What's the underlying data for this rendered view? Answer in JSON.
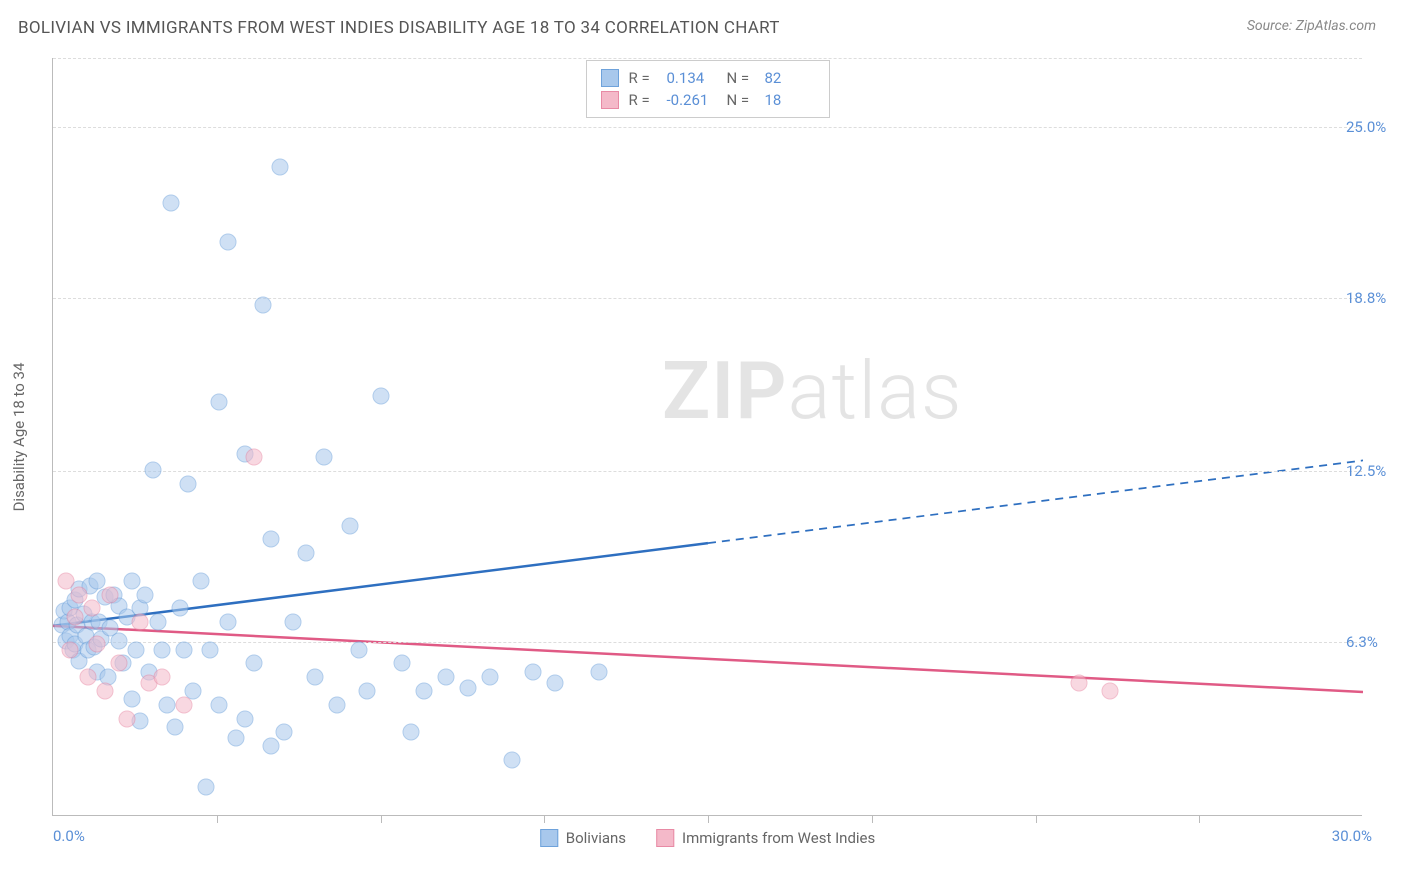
{
  "title": "BOLIVIAN VS IMMIGRANTS FROM WEST INDIES DISABILITY AGE 18 TO 34 CORRELATION CHART",
  "source": "Source: ZipAtlas.com",
  "watermark_a": "ZIP",
  "watermark_b": "atlas",
  "chart": {
    "type": "scatter",
    "y_label": "Disability Age 18 to 34",
    "x_min": 0.0,
    "x_max": 30.0,
    "y_min": 0.0,
    "y_max": 27.5,
    "x_min_label": "0.0%",
    "x_max_label": "30.0%",
    "y_ticks": [
      {
        "v": 6.3,
        "label": "6.3%"
      },
      {
        "v": 12.5,
        "label": "12.5%"
      },
      {
        "v": 18.8,
        "label": "18.8%"
      },
      {
        "v": 25.0,
        "label": "25.0%"
      }
    ],
    "x_tick_step": 3.75,
    "grid_color": "#dddddd",
    "axis_color": "#bbbbbb",
    "background_color": "#ffffff",
    "tick_label_color": "#5a8fd6",
    "axis_label_color": "#666666",
    "marker_radius": 8.5,
    "marker_opacity": 0.55,
    "series": [
      {
        "name": "Bolivians",
        "fill": "#a8c8ec",
        "stroke": "#6ea2db",
        "r": 0.134,
        "n": 82,
        "trend": {
          "x1": 0.0,
          "y1": 6.9,
          "x2_solid": 15.0,
          "y2_solid": 9.9,
          "x2": 30.0,
          "y2": 12.9,
          "color": "#2e6fc0",
          "width": 2.5
        },
        "points": [
          [
            0.2,
            6.9
          ],
          [
            0.25,
            7.4
          ],
          [
            0.3,
            6.3
          ],
          [
            0.35,
            7.0
          ],
          [
            0.4,
            6.5
          ],
          [
            0.4,
            7.5
          ],
          [
            0.45,
            6.0
          ],
          [
            0.5,
            7.8
          ],
          [
            0.5,
            6.2
          ],
          [
            0.55,
            6.9
          ],
          [
            0.6,
            8.2
          ],
          [
            0.6,
            5.6
          ],
          [
            0.7,
            7.3
          ],
          [
            0.75,
            6.5
          ],
          [
            0.8,
            6.0
          ],
          [
            0.85,
            8.3
          ],
          [
            0.9,
            7.0
          ],
          [
            0.95,
            6.1
          ],
          [
            1.0,
            8.5
          ],
          [
            1.0,
            5.2
          ],
          [
            1.05,
            7.0
          ],
          [
            1.1,
            6.4
          ],
          [
            1.2,
            7.9
          ],
          [
            1.25,
            5.0
          ],
          [
            1.3,
            6.8
          ],
          [
            1.4,
            8.0
          ],
          [
            1.5,
            6.3
          ],
          [
            1.5,
            7.6
          ],
          [
            1.6,
            5.5
          ],
          [
            1.7,
            7.2
          ],
          [
            1.8,
            8.5
          ],
          [
            1.8,
            4.2
          ],
          [
            1.9,
            6.0
          ],
          [
            2.0,
            7.5
          ],
          [
            2.0,
            3.4
          ],
          [
            2.1,
            8.0
          ],
          [
            2.2,
            5.2
          ],
          [
            2.3,
            12.5
          ],
          [
            2.4,
            7.0
          ],
          [
            2.5,
            6.0
          ],
          [
            2.6,
            4.0
          ],
          [
            2.7,
            22.2
          ],
          [
            2.8,
            3.2
          ],
          [
            2.9,
            7.5
          ],
          [
            3.0,
            6.0
          ],
          [
            3.1,
            12.0
          ],
          [
            3.2,
            4.5
          ],
          [
            3.4,
            8.5
          ],
          [
            3.5,
            1.0
          ],
          [
            3.6,
            6.0
          ],
          [
            3.8,
            15.0
          ],
          [
            3.8,
            4.0
          ],
          [
            4.0,
            7.0
          ],
          [
            4.0,
            20.8
          ],
          [
            4.2,
            2.8
          ],
          [
            4.4,
            13.1
          ],
          [
            4.4,
            3.5
          ],
          [
            4.6,
            5.5
          ],
          [
            4.8,
            18.5
          ],
          [
            5.0,
            10.0
          ],
          [
            5.0,
            2.5
          ],
          [
            5.2,
            23.5
          ],
          [
            5.3,
            3.0
          ],
          [
            5.5,
            7.0
          ],
          [
            5.8,
            9.5
          ],
          [
            6.0,
            5.0
          ],
          [
            6.2,
            13.0
          ],
          [
            6.5,
            4.0
          ],
          [
            6.8,
            10.5
          ],
          [
            7.0,
            6.0
          ],
          [
            7.2,
            4.5
          ],
          [
            7.5,
            15.2
          ],
          [
            8.0,
            5.5
          ],
          [
            8.2,
            3.0
          ],
          [
            8.5,
            4.5
          ],
          [
            9.0,
            5.0
          ],
          [
            9.5,
            4.6
          ],
          [
            10.0,
            5.0
          ],
          [
            10.5,
            2.0
          ],
          [
            11.0,
            5.2
          ],
          [
            11.5,
            4.8
          ],
          [
            12.5,
            5.2
          ]
        ]
      },
      {
        "name": "Immigrants from West Indies",
        "fill": "#f4b9c9",
        "stroke": "#e88aa5",
        "r": -0.261,
        "n": 18,
        "trend": {
          "x1": 0.0,
          "y1": 6.9,
          "x2_solid": 30.0,
          "y2_solid": 4.5,
          "x2": 30.0,
          "y2": 4.5,
          "color": "#e05a85",
          "width": 2.5
        },
        "points": [
          [
            0.3,
            8.5
          ],
          [
            0.4,
            6.0
          ],
          [
            0.5,
            7.2
          ],
          [
            0.6,
            8.0
          ],
          [
            0.8,
            5.0
          ],
          [
            0.9,
            7.5
          ],
          [
            1.0,
            6.2
          ],
          [
            1.2,
            4.5
          ],
          [
            1.3,
            8.0
          ],
          [
            1.5,
            5.5
          ],
          [
            1.7,
            3.5
          ],
          [
            2.0,
            7.0
          ],
          [
            2.2,
            4.8
          ],
          [
            2.5,
            5.0
          ],
          [
            3.0,
            4.0
          ],
          [
            4.6,
            13.0
          ],
          [
            23.5,
            4.8
          ],
          [
            24.2,
            4.5
          ]
        ]
      }
    ],
    "legend_top": {
      "r_label": "R =",
      "n_label": "N ="
    }
  }
}
